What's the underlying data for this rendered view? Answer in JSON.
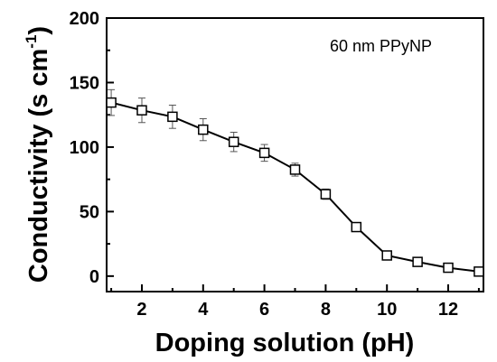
{
  "chart_data": {
    "type": "line",
    "title": "",
    "annotation": "60 nm PPyNP",
    "xlabel": "Doping solution (pH)",
    "ylabel": "Conductivity (s cm",
    "ylabel_sup": "-1",
    "ylabel_close": ")",
    "xlim": [
      0.85,
      13.15
    ],
    "ylim": [
      -12,
      200
    ],
    "xticks": [
      2,
      4,
      6,
      8,
      10,
      12
    ],
    "xtick_labels": [
      "2",
      "4",
      "6",
      "8",
      "10",
      "12"
    ],
    "yticks": [
      0,
      50,
      100,
      150,
      200
    ],
    "ytick_labels": [
      "0",
      "50",
      "100",
      "150",
      "200"
    ],
    "grid": false,
    "legend": "none",
    "marker": "open-square",
    "line_color": "#000000",
    "series": [
      {
        "x": [
          1,
          2,
          3,
          4,
          5,
          6,
          7,
          8,
          9,
          10,
          11,
          12,
          13
        ],
        "y": [
          134.5,
          128.5,
          123.5,
          113.5,
          104,
          95.5,
          82.5,
          63.5,
          38,
          16,
          11,
          6.5,
          3.5
        ],
        "error": [
          10,
          9.5,
          9,
          8.5,
          7.5,
          6.5,
          5,
          4,
          1.8,
          1.8,
          1.2,
          1,
          1
        ]
      }
    ]
  }
}
